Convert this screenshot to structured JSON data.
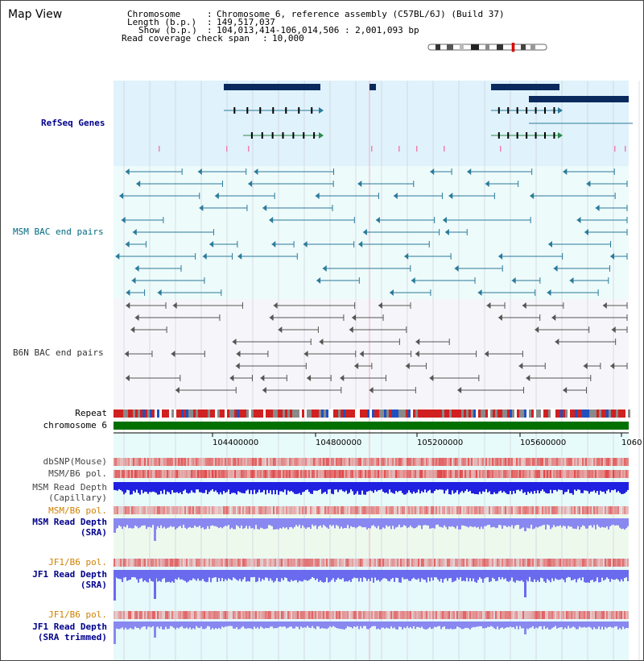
{
  "header": {
    "title": "Map View",
    "chromosome_label": "Chromosome",
    "chromosome_value": "Chromosome 6, reference assembly (C57BL/6J) (Build 37)",
    "length_label": "Length (b.p.)",
    "length_value": "149,517,037",
    "show_label": "Show (b.p.)",
    "show_value": "104,013,414-106,014,506 : 2,001,093 bp",
    "coverage_label": "Read coverage check span",
    "coverage_value": "10,000"
  },
  "tracks": {
    "refseq": "RefSeq Genes",
    "msm_bac": "MSM BAC end pairs",
    "b6n_bac": "B6N BAC end pairs",
    "repeat": "Repeat",
    "chromosome": "chromosome 6",
    "dbsnp": "dbSNP(Mouse)",
    "msm_b6_pol": "MSM/B6 pol.",
    "msm_depth_cap_1": "MSM Read Depth",
    "msm_depth_cap_2": "(Capillary)",
    "msm_b6_pol_sra": "MSM/B6 pol.",
    "msm_depth_sra_1": "MSM Read Depth",
    "msm_depth_sra_2": "(SRA)",
    "jf1_b6_pol": "JF1/B6 pol.",
    "jf1_depth_sra_1": "JF1 Read Depth",
    "jf1_depth_sra_2": "(SRA)",
    "jf1_b6_pol_trim": "JF1/B6 pol.",
    "jf1_depth_trim_1": "JF1 Read Depth",
    "jf1_depth_trim_2": "(SRA trimmed)"
  },
  "axis": {
    "ticks": [
      "104400000",
      "104800000",
      "105200000",
      "105600000",
      "1060"
    ]
  },
  "colors": {
    "refseq_bg": "#e0f2fb",
    "bac_bg": "#eefbfb",
    "b6n_bg": "#f6f6fa",
    "gene_dark": "#0a2a5e",
    "msm_feature": "#2a7a9a",
    "b6n_feature": "#555555",
    "chromosome_bar": "#007000",
    "depth_cap": "#2020e0",
    "depth_sra": "#8888f0",
    "depth_jf1": "#6a6aee",
    "pol_red": "#e05050"
  }
}
